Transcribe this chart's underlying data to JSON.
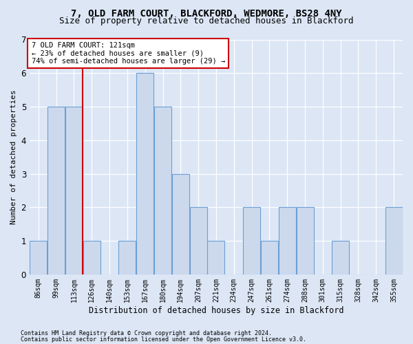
{
  "title": "7, OLD FARM COURT, BLACKFORD, WEDMORE, BS28 4NY",
  "subtitle": "Size of property relative to detached houses in Blackford",
  "xlabel": "Distribution of detached houses by size in Blackford",
  "ylabel": "Number of detached properties",
  "categories": [
    "86sqm",
    "99sqm",
    "113sqm",
    "126sqm",
    "140sqm",
    "153sqm",
    "167sqm",
    "180sqm",
    "194sqm",
    "207sqm",
    "221sqm",
    "234sqm",
    "247sqm",
    "261sqm",
    "274sqm",
    "288sqm",
    "301sqm",
    "315sqm",
    "328sqm",
    "342sqm",
    "355sqm"
  ],
  "values": [
    1,
    5,
    5,
    1,
    0,
    1,
    6,
    5,
    3,
    2,
    1,
    0,
    2,
    1,
    2,
    2,
    0,
    1,
    0,
    0,
    2
  ],
  "bar_color": "#ccd9ed",
  "bar_edge_color": "#6b9fd4",
  "annotation_title": "7 OLD FARM COURT: 121sqm",
  "annotation_line1": "← 23% of detached houses are smaller (9)",
  "annotation_line2": "74% of semi-detached houses are larger (29) →",
  "annotation_box_facecolor": "#ffffff",
  "annotation_box_edgecolor": "#cc0000",
  "red_line_x": 2.5,
  "footnote1": "Contains HM Land Registry data © Crown copyright and database right 2024.",
  "footnote2": "Contains public sector information licensed under the Open Government Licence v3.0.",
  "ylim": [
    0,
    7
  ],
  "background_color": "#dce6f5",
  "plot_background_color": "#dce6f5",
  "title_fontsize": 10,
  "subtitle_fontsize": 9,
  "tick_fontsize": 7,
  "ylabel_fontsize": 8,
  "xlabel_fontsize": 8.5,
  "footnote_fontsize": 6
}
